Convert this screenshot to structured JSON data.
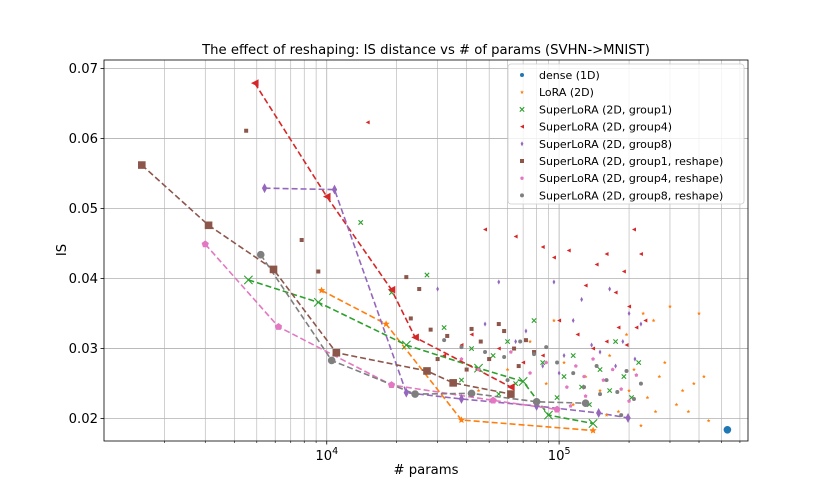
{
  "chart_data": {
    "type": "scatter",
    "title": "The effect of reshaping: IS distance vs # of params (SVHN->MNIST)",
    "xlabel": "# params",
    "ylabel": "IS",
    "xscale": "log",
    "xlim": [
      1100,
      650000
    ],
    "ylim": [
      0.0168,
      0.0712
    ],
    "x_ticks": [
      {
        "value": 10000,
        "label": "10^4"
      },
      {
        "value": 100000,
        "label": "10^5"
      }
    ],
    "y_ticks": [
      {
        "value": 0.02,
        "label": "0.02"
      },
      {
        "value": 0.03,
        "label": "0.03"
      },
      {
        "value": 0.04,
        "label": "0.04"
      },
      {
        "value": 0.05,
        "label": "0.05"
      },
      {
        "value": 0.06,
        "label": "0.06"
      },
      {
        "value": 0.07,
        "label": "0.07"
      }
    ],
    "grid": true,
    "legend_position": "top-right",
    "series": [
      {
        "name": "dense (1D)",
        "color": "#1f77b4",
        "marker": "circle",
        "frontier": [],
        "points": [
          [
            530000,
            0.0184
          ]
        ]
      },
      {
        "name": "LoRA (2D)",
        "color": "#ff7f0e",
        "marker": "star",
        "frontier": [
          [
            9500,
            0.0383
          ],
          [
            18000,
            0.0335
          ],
          [
            38000,
            0.0198
          ],
          [
            140000,
            0.0183
          ]
        ],
        "points": [
          [
            9500,
            0.0383
          ],
          [
            18000,
            0.0335
          ],
          [
            38000,
            0.0198
          ],
          [
            140000,
            0.0183
          ],
          [
            45000,
            0.024
          ],
          [
            60000,
            0.027
          ],
          [
            75000,
            0.031
          ],
          [
            88000,
            0.025
          ],
          [
            95000,
            0.034
          ],
          [
            105000,
            0.028
          ],
          [
            115000,
            0.022
          ],
          [
            130000,
            0.026
          ],
          [
            150000,
            0.024
          ],
          [
            165000,
            0.029
          ],
          [
            180000,
            0.021
          ],
          [
            195000,
            0.032
          ],
          [
            210000,
            0.027
          ],
          [
            225000,
            0.019
          ],
          [
            240000,
            0.023
          ],
          [
            255000,
            0.034
          ],
          [
            270000,
            0.026
          ],
          [
            285000,
            0.028
          ],
          [
            300000,
            0.036
          ],
          [
            320000,
            0.022
          ],
          [
            340000,
            0.024
          ],
          [
            360000,
            0.021
          ],
          [
            380000,
            0.025
          ],
          [
            400000,
            0.035
          ],
          [
            420000,
            0.026
          ],
          [
            440000,
            0.0197
          ],
          [
            160000,
            0.0205
          ],
          [
            200000,
            0.024
          ],
          [
            260000,
            0.021
          ],
          [
            230000,
            0.035
          ]
        ]
      },
      {
        "name": "SuperLoRA (2D, group1)",
        "color": "#2ca02c",
        "marker": "x",
        "frontier": [
          [
            4600,
            0.0398
          ],
          [
            9200,
            0.0366
          ],
          [
            22000,
            0.0305
          ],
          [
            45000,
            0.0272
          ],
          [
            70000,
            0.0253
          ],
          [
            90000,
            0.0205
          ],
          [
            140000,
            0.0193
          ]
        ],
        "points": [
          [
            4600,
            0.0398
          ],
          [
            9200,
            0.0366
          ],
          [
            22000,
            0.0305
          ],
          [
            45000,
            0.0272
          ],
          [
            70000,
            0.0253
          ],
          [
            90000,
            0.0205
          ],
          [
            140000,
            0.0193
          ],
          [
            14000,
            0.048
          ],
          [
            19000,
            0.038
          ],
          [
            27000,
            0.0405
          ],
          [
            32000,
            0.033
          ],
          [
            42000,
            0.03
          ],
          [
            52000,
            0.029
          ],
          [
            60000,
            0.031
          ],
          [
            65000,
            0.025
          ],
          [
            78000,
            0.034
          ],
          [
            85000,
            0.028
          ],
          [
            98000,
            0.023
          ],
          [
            105000,
            0.026
          ],
          [
            115000,
            0.029
          ],
          [
            125000,
            0.0245
          ],
          [
            135000,
            0.022
          ],
          [
            150000,
            0.027
          ],
          [
            165000,
            0.024
          ],
          [
            175000,
            0.031
          ],
          [
            190000,
            0.026
          ],
          [
            205000,
            0.023
          ],
          [
            220000,
            0.028
          ],
          [
            38000,
            0.0255
          ],
          [
            55000,
            0.0235
          ]
        ]
      },
      {
        "name": "SuperLoRA (2D, group4)",
        "color": "#d62728",
        "marker": "triangle-left",
        "frontier": [
          [
            4900,
            0.0679
          ],
          [
            10000,
            0.0517
          ],
          [
            19000,
            0.0384
          ],
          [
            24000,
            0.0316
          ],
          [
            62000,
            0.0245
          ]
        ],
        "points": [
          [
            4900,
            0.0679
          ],
          [
            10000,
            0.0517
          ],
          [
            19000,
            0.0384
          ],
          [
            24000,
            0.0316
          ],
          [
            62000,
            0.0245
          ],
          [
            15000,
            0.0623
          ],
          [
            48000,
            0.047
          ],
          [
            65000,
            0.046
          ],
          [
            85000,
            0.0445
          ],
          [
            95000,
            0.043
          ],
          [
            110000,
            0.044
          ],
          [
            130000,
            0.039
          ],
          [
            145000,
            0.042
          ],
          [
            160000,
            0.0435
          ],
          [
            175000,
            0.038
          ],
          [
            190000,
            0.041
          ],
          [
            210000,
            0.047
          ],
          [
            225000,
            0.0435
          ],
          [
            235000,
            0.034
          ],
          [
            200000,
            0.036
          ],
          [
            180000,
            0.033
          ],
          [
            160000,
            0.031
          ],
          [
            140000,
            0.03
          ],
          [
            120000,
            0.032
          ],
          [
            100000,
            0.034
          ],
          [
            85000,
            0.029
          ],
          [
            70000,
            0.028
          ],
          [
            55000,
            0.03
          ],
          [
            42000,
            0.032
          ],
          [
            38000,
            0.0305
          ],
          [
            32000,
            0.029
          ],
          [
            195000,
            0.0305
          ],
          [
            215000,
            0.033
          ]
        ]
      },
      {
        "name": "SuperLoRA (2D, group8)",
        "color": "#9467bd",
        "marker": "thin-diamond",
        "frontier": [
          [
            5400,
            0.0529
          ],
          [
            10800,
            0.0527
          ],
          [
            22000,
            0.0237
          ],
          [
            38000,
            0.0228
          ],
          [
            80000,
            0.0218
          ],
          [
            148000,
            0.0208
          ],
          [
            198000,
            0.0201
          ]
        ],
        "points": [
          [
            5400,
            0.0529
          ],
          [
            10800,
            0.0527
          ],
          [
            22000,
            0.0237
          ],
          [
            38000,
            0.0228
          ],
          [
            80000,
            0.0218
          ],
          [
            148000,
            0.0208
          ],
          [
            198000,
            0.0201
          ],
          [
            30000,
            0.0385
          ],
          [
            55000,
            0.0395
          ],
          [
            48000,
            0.0335
          ],
          [
            65000,
            0.031
          ],
          [
            72000,
            0.0325
          ],
          [
            95000,
            0.0395
          ],
          [
            105000,
            0.029
          ],
          [
            115000,
            0.034
          ],
          [
            125000,
            0.037
          ],
          [
            138000,
            0.0305
          ],
          [
            150000,
            0.0295
          ],
          [
            165000,
            0.0385
          ],
          [
            175000,
            0.0275
          ],
          [
            188000,
            0.031
          ],
          [
            200000,
            0.035
          ],
          [
            212000,
            0.0285
          ],
          [
            225000,
            0.0335
          ],
          [
            100000,
            0.0265
          ],
          [
            85000,
            0.0275
          ]
        ]
      },
      {
        "name": "SuperLoRA (2D, group1, reshape)",
        "color": "#8c564b",
        "marker": "square",
        "frontier": [
          [
            1600,
            0.0562
          ],
          [
            3100,
            0.0476
          ],
          [
            5900,
            0.0413
          ],
          [
            11000,
            0.0294
          ],
          [
            27000,
            0.0268
          ],
          [
            35000,
            0.0251
          ],
          [
            62000,
            0.0235
          ]
        ],
        "points": [
          [
            1600,
            0.0562
          ],
          [
            3100,
            0.0476
          ],
          [
            5900,
            0.0413
          ],
          [
            11000,
            0.0294
          ],
          [
            27000,
            0.0268
          ],
          [
            35000,
            0.0251
          ],
          [
            62000,
            0.0235
          ],
          [
            4500,
            0.0611
          ],
          [
            7800,
            0.0455
          ],
          [
            9200,
            0.041
          ],
          [
            22000,
            0.0402
          ],
          [
            25000,
            0.0385
          ],
          [
            23000,
            0.0343
          ],
          [
            28000,
            0.0327
          ],
          [
            33000,
            0.0318
          ],
          [
            42000,
            0.0328
          ],
          [
            46000,
            0.031
          ],
          [
            50000,
            0.0285
          ],
          [
            55000,
            0.0335
          ],
          [
            58000,
            0.0325
          ],
          [
            64000,
            0.03
          ],
          [
            67000,
            0.0275
          ],
          [
            72000,
            0.0312
          ],
          [
            78000,
            0.0295
          ],
          [
            30000,
            0.0285
          ],
          [
            40000,
            0.027
          ]
        ]
      },
      {
        "name": "SuperLoRA (2D, group4, reshape)",
        "color": "#e377c2",
        "marker": "pentagon",
        "frontier": [
          [
            3000,
            0.0449
          ],
          [
            6200,
            0.0331
          ],
          [
            19000,
            0.0248
          ],
          [
            52000,
            0.0226
          ],
          [
            98000,
            0.0213
          ]
        ],
        "points": [
          [
            3000,
            0.0449
          ],
          [
            6200,
            0.0331
          ],
          [
            19000,
            0.0248
          ],
          [
            52000,
            0.0226
          ],
          [
            98000,
            0.0213
          ],
          [
            38000,
            0.0285
          ],
          [
            45000,
            0.027
          ],
          [
            62000,
            0.0295
          ],
          [
            75000,
            0.0265
          ],
          [
            88000,
            0.028
          ],
          [
            108000,
            0.0245
          ],
          [
            118000,
            0.0275
          ],
          [
            128000,
            0.026
          ],
          [
            140000,
            0.0285
          ],
          [
            155000,
            0.0255
          ],
          [
            170000,
            0.027
          ],
          [
            185000,
            0.0242
          ],
          [
            200000,
            0.0225
          ],
          [
            215000,
            0.0262
          ],
          [
            112000,
            0.0218
          ],
          [
            130000,
            0.0232
          ]
        ]
      },
      {
        "name": "SuperLoRA (2D, group8, reshape)",
        "color": "#7f7f7f",
        "marker": "circle",
        "frontier": [
          [
            5200,
            0.0434
          ],
          [
            10500,
            0.0283
          ],
          [
            24000,
            0.0235
          ],
          [
            42000,
            0.0236
          ],
          [
            80000,
            0.0224
          ],
          [
            130000,
            0.0222
          ]
        ],
        "points": [
          [
            5200,
            0.0434
          ],
          [
            10500,
            0.0283
          ],
          [
            24000,
            0.0235
          ],
          [
            42000,
            0.0236
          ],
          [
            80000,
            0.0224
          ],
          [
            130000,
            0.0222
          ],
          [
            32000,
            0.0312
          ],
          [
            38000,
            0.0302
          ],
          [
            48000,
            0.0295
          ],
          [
            58000,
            0.0288
          ],
          [
            68000,
            0.031
          ],
          [
            78000,
            0.0292
          ],
          [
            88000,
            0.0302
          ],
          [
            98000,
            0.028
          ],
          [
            115000,
            0.0265
          ],
          [
            128000,
            0.0245
          ],
          [
            145000,
            0.0275
          ],
          [
            160000,
            0.0255
          ],
          [
            178000,
            0.0238
          ],
          [
            195000,
            0.0268
          ],
          [
            210000,
            0.0228
          ],
          [
            225000,
            0.025
          ],
          [
            185000,
            0.0205
          ],
          [
            150000,
            0.0235
          ],
          [
            60000,
            0.0255
          ]
        ]
      }
    ]
  }
}
